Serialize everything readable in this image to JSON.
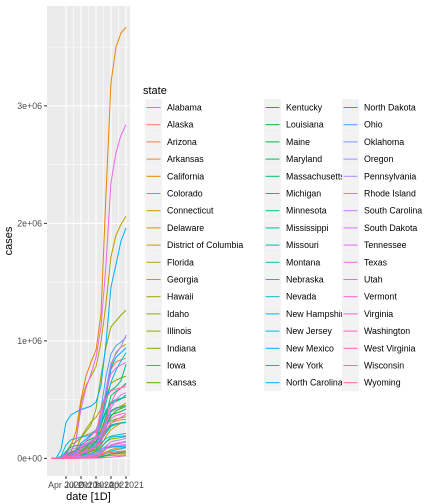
{
  "chart_data": {
    "type": "line",
    "xlabel": "date [1D]",
    "ylabel": "cases",
    "legend_title": "state",
    "legend_position": "right",
    "grid": true,
    "x_ticks": [
      "Apr 2020",
      "Jul 2020",
      "Oct 2020",
      "Jan 2021",
      "Apr 2021"
    ],
    "y_ticks": [
      "0e+00",
      "1e+06",
      "2e+06",
      "3e+06"
    ],
    "y_tick_values": [
      0,
      1000000,
      2000000,
      3000000
    ],
    "ylim": [
      -150000,
      3850000
    ],
    "x": [
      "Jan 2020",
      "Feb 2020",
      "Mar 2020",
      "Apr 2020",
      "May 2020",
      "Jun 2020",
      "Jul 2020",
      "Aug 2020",
      "Sep 2020",
      "Oct 2020",
      "Nov 2020",
      "Dec 2020",
      "Jan 2021",
      "Feb 2021",
      "Mar 2021",
      "Apr 2021"
    ],
    "series": [
      {
        "name": "Alabama",
        "color": "#F8766D",
        "values": [
          0,
          0,
          1000,
          6000,
          16000,
          37000,
          90000,
          120000,
          150000,
          175000,
          240000,
          350000,
          460000,
          490000,
          510000,
          520000
        ]
      },
      {
        "name": "Alaska",
        "color": "#F47A5E",
        "values": [
          0,
          0,
          0,
          300,
          500,
          900,
          3500,
          5000,
          8000,
          12000,
          30000,
          45000,
          52000,
          57000,
          62000,
          65000
        ]
      },
      {
        "name": "Arizona",
        "color": "#F07E4F",
        "values": [
          0,
          0,
          1000,
          6000,
          19000,
          75000,
          175000,
          200000,
          215000,
          240000,
          340000,
          520000,
          760000,
          820000,
          840000,
          850000
        ]
      },
      {
        "name": "Arkansas",
        "color": "#EB8335",
        "values": [
          0,
          0,
          500,
          3000,
          6000,
          18000,
          42000,
          60000,
          82000,
          105000,
          155000,
          225000,
          300000,
          318000,
          328000,
          332000
        ]
      },
      {
        "name": "California",
        "color": "#E58700",
        "values": [
          0,
          0,
          8000,
          48000,
          110000,
          230000,
          500000,
          700000,
          820000,
          920000,
          1230000,
          2250000,
          3200000,
          3500000,
          3620000,
          3670000
        ]
      },
      {
        "name": "Colorado",
        "color": "#DE8C00",
        "values": [
          0,
          0,
          2500,
          15000,
          26000,
          31000,
          45000,
          55000,
          70000,
          95000,
          250000,
          340000,
          400000,
          420000,
          445000,
          470000
        ]
      },
      {
        "name": "Connecticut",
        "color": "#D69100",
        "values": [
          0,
          0,
          3000,
          28000,
          42000,
          46000,
          49000,
          52000,
          57000,
          68000,
          110000,
          185000,
          245000,
          275000,
          300000,
          310000
        ]
      },
      {
        "name": "Delaware",
        "color": "#CD9600",
        "values": [
          0,
          0,
          300,
          4000,
          9500,
          11000,
          14000,
          16000,
          20000,
          23500,
          33000,
          55000,
          75000,
          86000,
          91000,
          96000
        ]
      },
      {
        "name": "District of Columbia",
        "color": "#C49A00",
        "values": [
          0,
          0,
          500,
          4000,
          8500,
          10000,
          12000,
          14000,
          15500,
          17000,
          21000,
          28000,
          36000,
          39500,
          42000,
          44000
        ]
      },
      {
        "name": "Florida",
        "color": "#BA9E00",
        "values": [
          0,
          0,
          7000,
          32000,
          55000,
          150000,
          470000,
          620000,
          700000,
          780000,
          990000,
          1320000,
          1720000,
          1900000,
          1990000,
          2060000
        ]
      },
      {
        "name": "Georgia",
        "color": "#B0A200",
        "values": [
          0,
          0,
          4000,
          25000,
          46000,
          77000,
          180000,
          250000,
          310000,
          350000,
          420000,
          560000,
          790000,
          900000,
          950000,
          970000
        ]
      },
      {
        "name": "Hawaii",
        "color": "#A3A500",
        "values": [
          0,
          0,
          200,
          600,
          650,
          800,
          2500,
          8000,
          11500,
          14500,
          17000,
          21000,
          25000,
          27000,
          28500,
          30000
        ]
      },
      {
        "name": "Idaho",
        "color": "#96A900",
        "values": [
          0,
          0,
          500,
          1900,
          2800,
          4500,
          20000,
          32000,
          38000,
          55000,
          95000,
          140000,
          165000,
          170000,
          178000,
          185000
        ]
      },
      {
        "name": "Illinois",
        "color": "#87AC00",
        "values": [
          0,
          0,
          6000,
          55000,
          120000,
          140000,
          175000,
          230000,
          285000,
          420000,
          700000,
          950000,
          1120000,
          1170000,
          1220000,
          1260000
        ]
      },
      {
        "name": "Indiana",
        "color": "#77AF00",
        "values": [
          0,
          0,
          2500,
          17000,
          35000,
          44000,
          70000,
          95000,
          125000,
          170000,
          330000,
          520000,
          640000,
          665000,
          685000,
          700000
        ]
      },
      {
        "name": "Iowa",
        "color": "#63B200",
        "values": [
          0,
          0,
          500,
          7000,
          19000,
          27000,
          45000,
          65000,
          95000,
          125000,
          225000,
          280000,
          320000,
          335000,
          345000,
          355000
        ]
      },
      {
        "name": "Kansas",
        "color": "#4BB400",
        "values": [
          0,
          0,
          400,
          2500,
          9500,
          14500,
          29000,
          42000,
          58000,
          80000,
          155000,
          220000,
          280000,
          295000,
          303000,
          307000
        ]
      },
      {
        "name": "Kentucky",
        "color": "#1DB700",
        "values": [
          0,
          0,
          500,
          4500,
          9000,
          15000,
          28000,
          45000,
          68000,
          95000,
          160000,
          260000,
          360000,
          405000,
          425000,
          440000
        ]
      },
      {
        "name": "Louisiana",
        "color": "#00B92A",
        "values": [
          0,
          0,
          6000,
          28000,
          38000,
          55000,
          110000,
          145000,
          165000,
          185000,
          225000,
          310000,
          405000,
          430000,
          440000,
          450000
        ]
      },
      {
        "name": "Maine",
        "color": "#00BB45",
        "values": [
          0,
          0,
          300,
          1100,
          2500,
          3100,
          3900,
          4600,
          5300,
          6100,
          10000,
          23000,
          39000,
          44000,
          48000,
          54000
        ]
      },
      {
        "name": "Maryland",
        "color": "#00BC59",
        "values": [
          0,
          0,
          1500,
          23000,
          52000,
          67000,
          89000,
          107000,
          122000,
          136000,
          180000,
          275000,
          370000,
          385000,
          400000,
          420000
        ]
      },
      {
        "name": "Massachusetts",
        "color": "#00BE6B",
        "values": [
          0,
          0,
          6000,
          60000,
          97000,
          108000,
          115000,
          123000,
          133000,
          148000,
          215000,
          365000,
          535000,
          570000,
          600000,
          640000
        ]
      },
      {
        "name": "Michigan",
        "color": "#00BF7B",
        "values": [
          0,
          0,
          7000,
          41000,
          57000,
          65000,
          85000,
          105000,
          130000,
          175000,
          350000,
          520000,
          580000,
          610000,
          660000,
          800000
        ]
      },
      {
        "name": "Minnesota",
        "color": "#00C08A",
        "values": [
          0,
          0,
          600,
          5000,
          24000,
          37000,
          53000,
          78000,
          105000,
          140000,
          300000,
          410000,
          470000,
          485000,
          505000,
          540000
        ]
      },
      {
        "name": "Mississippi",
        "color": "#00C098",
        "values": [
          0,
          0,
          1000,
          6500,
          14000,
          25000,
          60000,
          87000,
          103000,
          121000,
          155000,
          215000,
          270000,
          290000,
          300000,
          306000
        ]
      },
      {
        "name": "Missouri",
        "color": "#00C1A6",
        "values": [
          0,
          0,
          1500,
          7500,
          13500,
          22000,
          50000,
          80000,
          135000,
          175000,
          280000,
          395000,
          480000,
          500000,
          510000,
          520000
        ]
      },
      {
        "name": "Montana",
        "color": "#00C0B2",
        "values": [
          0,
          0,
          200,
          450,
          500,
          1000,
          4500,
          8000,
          12500,
          25000,
          60000,
          83000,
          95000,
          99000,
          102000,
          105000
        ]
      },
      {
        "name": "Nebraska",
        "color": "#00BFBF",
        "values": [
          0,
          0,
          200,
          3000,
          13000,
          18500,
          26000,
          33000,
          43000,
          60000,
          130000,
          170000,
          190000,
          198000,
          205000,
          212000
        ]
      },
      {
        "name": "Nevada",
        "color": "#00BDCB",
        "values": [
          0,
          0,
          1200,
          5000,
          8500,
          16000,
          48000,
          68000,
          82000,
          100000,
          160000,
          230000,
          285000,
          295000,
          300000,
          305000
        ]
      },
      {
        "name": "New Hampshire",
        "color": "#00BBD6",
        "values": [
          0,
          0,
          400,
          2300,
          4600,
          5900,
          6600,
          7400,
          8400,
          10500,
          20000,
          42000,
          63000,
          72000,
          81000,
          91000
        ]
      },
      {
        "name": "New Jersey",
        "color": "#00B8E1",
        "values": [
          0,
          0,
          18000,
          115000,
          157000,
          170000,
          179000,
          190000,
          202000,
          225000,
          310000,
          475000,
          650000,
          750000,
          830000,
          900000
        ]
      },
      {
        "name": "New Mexico",
        "color": "#00B4EB",
        "values": [
          0,
          0,
          300,
          3500,
          7500,
          12000,
          20000,
          25000,
          29000,
          38000,
          90000,
          140000,
          180000,
          185000,
          188000,
          191000
        ]
      },
      {
        "name": "New York",
        "color": "#00B0F4",
        "values": [
          0,
          0,
          75000,
          305000,
          370000,
          395000,
          415000,
          430000,
          445000,
          480000,
          620000,
          980000,
          1460000,
          1650000,
          1850000,
          1960000
        ]
      },
      {
        "name": "North Carolina",
        "color": "#00ABFD",
        "values": [
          0,
          0,
          1500,
          11000,
          28000,
          64000,
          130000,
          165000,
          200000,
          245000,
          340000,
          535000,
          770000,
          860000,
          900000,
          940000
        ]
      },
      {
        "name": "North Dakota",
        "color": "#00A5FF",
        "values": [
          0,
          0,
          100,
          1100,
          2700,
          3700,
          6000,
          10500,
          20000,
          38000,
          80000,
          92000,
          98000,
          100000,
          103000,
          106000
        ]
      },
      {
        "name": "Ohio",
        "color": "#4C9EFF",
        "values": [
          0,
          0,
          2000,
          18000,
          35000,
          52000,
          90000,
          115000,
          145000,
          190000,
          420000,
          700000,
          890000,
          960000,
          990000,
          1030000
        ]
      },
      {
        "name": "Oklahoma",
        "color": "#7997FF",
        "values": [
          0,
          0,
          600,
          3500,
          6500,
          13000,
          38000,
          57000,
          86000,
          120000,
          205000,
          300000,
          395000,
          425000,
          433000,
          440000
        ]
      },
      {
        "name": "Oregon",
        "color": "#9590FF",
        "values": [
          0,
          0,
          600,
          2500,
          4200,
          8500,
          18000,
          26000,
          32000,
          42000,
          70000,
          105000,
          140000,
          152000,
          159000,
          170000
        ]
      },
      {
        "name": "Pennsylvania",
        "color": "#AC88FF",
        "values": [
          0,
          0,
          4000,
          47000,
          77000,
          88000,
          105000,
          127000,
          148000,
          180000,
          320000,
          590000,
          810000,
          890000,
          950000,
          1050000
        ]
      },
      {
        "name": "Rhode Island",
        "color": "#BF80FF",
        "values": [
          0,
          0,
          500,
          7700,
          14000,
          16500,
          18500,
          20500,
          23000,
          27500,
          50000,
          85000,
          112000,
          122000,
          130000,
          140000
        ]
      },
      {
        "name": "South Carolina",
        "color": "#CF78FF",
        "values": [
          0,
          0,
          1000,
          6500,
          11000,
          27000,
          88000,
          115000,
          140000,
          165000,
          200000,
          280000,
          430000,
          500000,
          540000,
          560000
        ]
      },
      {
        "name": "South Dakota",
        "color": "#DC71FA",
        "values": [
          0,
          0,
          100,
          2400,
          4800,
          6600,
          8500,
          11000,
          22000,
          40000,
          80000,
          100000,
          108000,
          111000,
          115000,
          118000
        ]
      },
      {
        "name": "Tennessee",
        "color": "#E76BF3",
        "values": [
          0,
          0,
          2000,
          11000,
          22000,
          40000,
          95000,
          150000,
          190000,
          240000,
          360000,
          570000,
          720000,
          770000,
          795000,
          815000
        ]
      },
      {
        "name": "Texas",
        "color": "#F066EA",
        "values": [
          0,
          0,
          3500,
          27000,
          60000,
          155000,
          420000,
          600000,
          720000,
          860000,
          1120000,
          1650000,
          2350000,
          2600000,
          2750000,
          2840000
        ]
      },
      {
        "name": "Utah",
        "color": "#F763E0",
        "values": [
          0,
          0,
          900,
          4700,
          8500,
          18000,
          38000,
          50000,
          66000,
          98000,
          175000,
          270000,
          340000,
          365000,
          378000,
          388000
        ]
      },
      {
        "name": "Vermont",
        "color": "#FC61D5",
        "values": [
          0,
          0,
          300,
          900,
          970,
          1200,
          1400,
          1600,
          1800,
          2000,
          3400,
          7300,
          10500,
          14300,
          18000,
          21500
        ]
      },
      {
        "name": "Virginia",
        "color": "#FF61C9",
        "values": [
          0,
          0,
          1300,
          15000,
          40000,
          60000,
          88000,
          118000,
          140000,
          165000,
          220000,
          320000,
          470000,
          560000,
          600000,
          630000
        ]
      },
      {
        "name": "Washington",
        "color": "#FF62BC",
        "values": [
          0,
          0,
          5000,
          14000,
          20000,
          28000,
          47000,
          68000,
          80000,
          95000,
          140000,
          240000,
          300000,
          330000,
          350000,
          375000
        ]
      },
      {
        "name": "West Virginia",
        "color": "#FF65AE",
        "values": [
          0,
          0,
          200,
          1100,
          1800,
          2700,
          5000,
          8500,
          13500,
          19000,
          40000,
          80000,
          115000,
          128000,
          135000,
          145000
        ]
      },
      {
        "name": "Wisconsin",
        "color": "#FF689F",
        "values": [
          0,
          0,
          1500,
          7500,
          18000,
          28000,
          50000,
          78000,
          110000,
          195000,
          410000,
          510000,
          575000,
          590000,
          600000,
          610000
        ]
      },
      {
        "name": "Wyoming",
        "color": "#FF6C90",
        "values": [
          0,
          0,
          150,
          550,
          750,
          1400,
          2600,
          3700,
          5200,
          9000,
          28000,
          43000,
          50000,
          53000,
          55000,
          57000
        ]
      }
    ]
  }
}
